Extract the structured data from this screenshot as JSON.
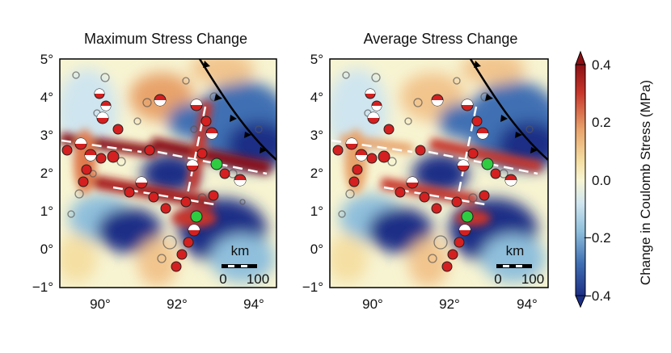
{
  "panels": [
    {
      "title": "Maximum Stress Change",
      "y_ticks": [
        "5°",
        "4°",
        "3°",
        "2°",
        "1°",
        "0°",
        "−1°"
      ],
      "x_ticks": [
        "90°",
        "92°",
        "94°"
      ],
      "scale_unit": "km",
      "scale_labels": [
        "0",
        "100"
      ]
    },
    {
      "title": "Average Stress Change",
      "y_ticks": [
        "5°",
        "4°",
        "3°",
        "2°",
        "1°",
        "0°",
        "−1°"
      ],
      "x_ticks": [
        "90°",
        "92°",
        "94°"
      ],
      "scale_unit": "km",
      "scale_labels": [
        "0",
        "100"
      ]
    }
  ],
  "colorbar": {
    "label": "Change in Coulomb Stress (MPa)",
    "ticks": [
      "0.4",
      "0.2",
      "0.0",
      "−0.2",
      "−0.4"
    ],
    "colors": {
      "high": "#8b1014",
      "mid_high": "#e8a36b",
      "zero": "#f7f4d2",
      "mid_low": "#8fbfdc",
      "low": "#1c2f86"
    }
  },
  "map_extent": {
    "lon": [
      89,
      94.5
    ],
    "lat": [
      -1,
      5
    ]
  }
}
